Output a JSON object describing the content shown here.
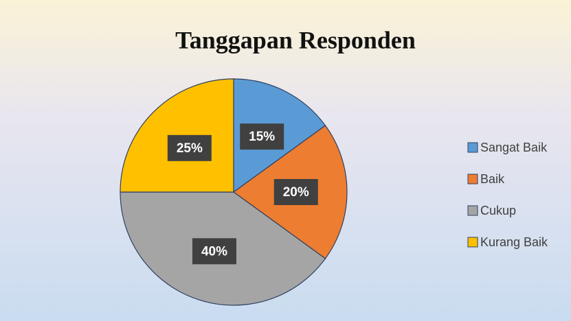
{
  "chart_data": {
    "type": "pie",
    "title": "Tanggapan Responden",
    "categories": [
      "Sangat Baik",
      "Baik",
      "Cukup",
      "Kurang Baik"
    ],
    "values": [
      15,
      20,
      40,
      25
    ],
    "value_labels": [
      "15%",
      "20%",
      "40%",
      "25%"
    ],
    "colors": [
      "#5b9bd5",
      "#ed7d31",
      "#a5a5a5",
      "#ffc000"
    ],
    "legend": "right"
  }
}
